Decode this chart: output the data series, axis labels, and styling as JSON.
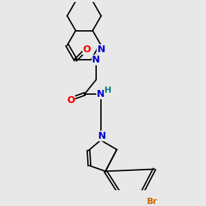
{
  "background_color": "#e8e8e8",
  "bond_color": "#000000",
  "atom_colors": {
    "O": "#ff0000",
    "N": "#0000cc",
    "H": "#008080",
    "Br": "#cc6600"
  },
  "font_size_atoms": 10,
  "line_width": 1.4
}
